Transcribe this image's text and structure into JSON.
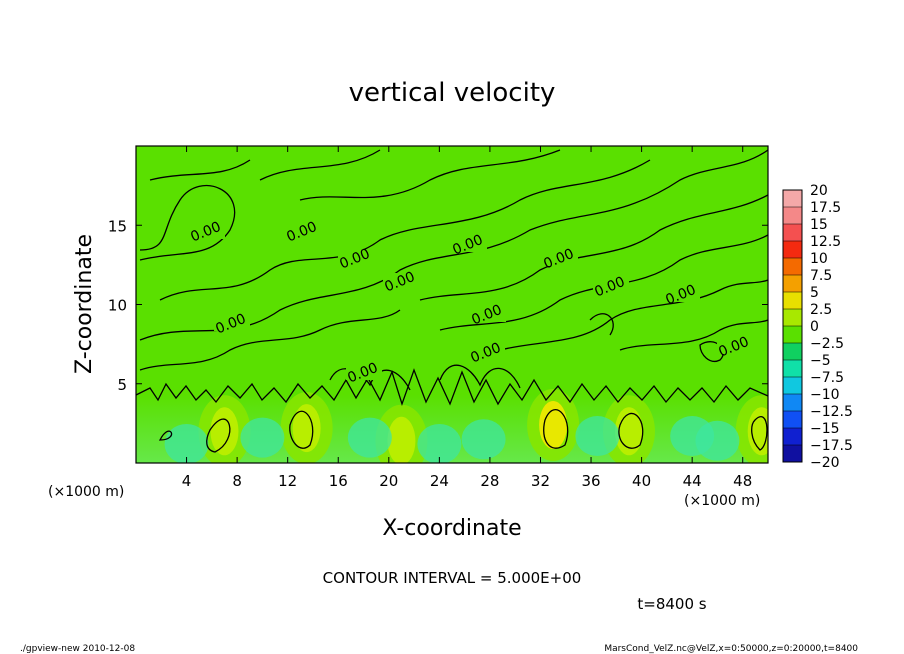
{
  "chart_data": {
    "type": "heatmap",
    "title": "vertical velocity",
    "xlabel": "X-coordinate",
    "ylabel": "Z-coordinate",
    "x_unit_left": "(×1000 m)",
    "x_unit_right": "(×1000 m)",
    "xlim": [
      0,
      50
    ],
    "ylim": [
      0,
      20
    ],
    "x_ticks": [
      "4",
      "8",
      "12",
      "16",
      "20",
      "24",
      "28",
      "32",
      "36",
      "40",
      "44",
      "48"
    ],
    "y_ticks": [
      "5",
      "10",
      "15"
    ],
    "contour_interval_text": "CONTOUR INTERVAL = 5.000E+00",
    "contour_labels": [
      "0.00"
    ],
    "time_label": "t=8400 s",
    "colorbar": {
      "labels": [
        "20",
        "17.5",
        "15",
        "12.5",
        "10",
        "7.5",
        "5",
        "2.5",
        "0",
        "−2.5",
        "−5",
        "−7.5",
        "−10",
        "−12.5",
        "−15",
        "−17.5",
        "−20"
      ],
      "colors": [
        "#f4a8a8",
        "#f48888",
        "#f45050",
        "#f42a10",
        "#f46a00",
        "#f4a000",
        "#e8e000",
        "#a8e800",
        "#5ae000",
        "#10d060",
        "#10e0a8",
        "#10c8e0",
        "#1088f4",
        "#1050f4",
        "#1020d0",
        "#1010a0",
        "#7010b0"
      ]
    },
    "updraft_cores_km": [
      {
        "x": 7,
        "z": 2.0,
        "value": 5
      },
      {
        "x": 13.5,
        "z": 2.2,
        "value": 5
      },
      {
        "x": 21,
        "z": 1.4,
        "value": 5
      },
      {
        "x": 33,
        "z": 2.4,
        "value": 7.5
      },
      {
        "x": 39,
        "z": 2.0,
        "value": 5
      },
      {
        "x": 49.5,
        "z": 2.0,
        "value": 5
      }
    ]
  },
  "footer": {
    "left": "./gpview-new   2010-12-08",
    "right": "MarsCond_VelZ.nc@VelZ,x=0:50000,z=0:20000,t=8400"
  }
}
